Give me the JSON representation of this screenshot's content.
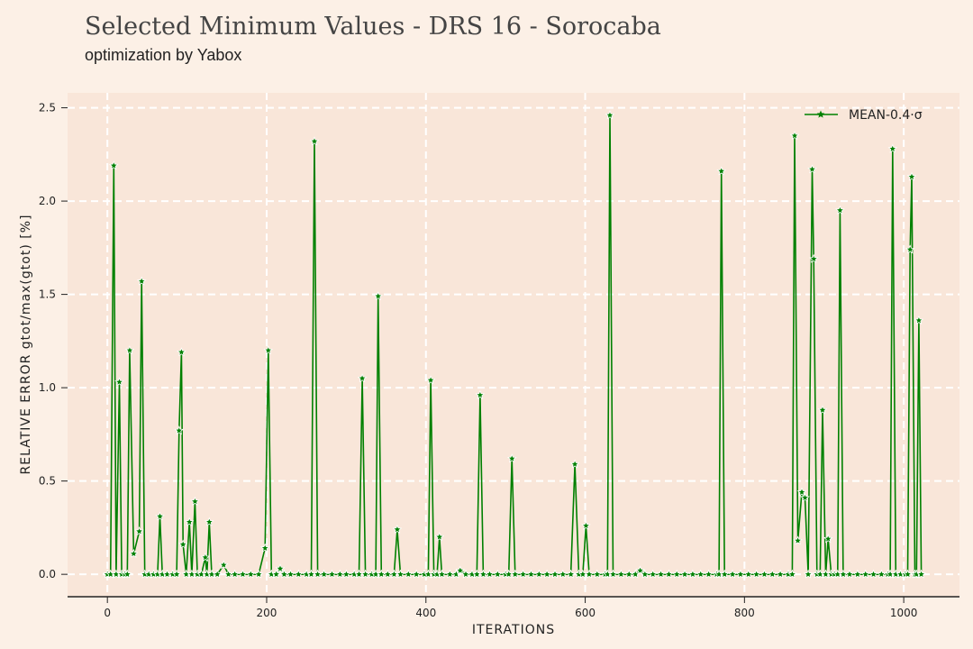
{
  "chart_data": {
    "type": "line",
    "title": "Selected Minimum Values - DRS 16 - Sorocaba",
    "subtitle": "optimization by Yabox",
    "xlabel": "ITERATIONS",
    "ylabel": "RELATIVE ERROR gtot/max(gtot) [%]",
    "x": [
      0,
      4,
      8,
      11,
      15,
      18,
      22,
      25,
      28,
      33,
      40,
      43,
      47,
      52,
      58,
      63,
      66,
      69,
      75,
      82,
      87,
      90,
      93,
      95,
      99,
      103,
      106,
      110,
      113,
      118,
      123,
      125,
      128,
      131,
      138,
      146,
      152,
      160,
      170,
      180,
      190,
      198,
      202,
      206,
      212,
      217,
      222,
      230,
      240,
      250,
      256,
      260,
      264,
      272,
      282,
      292,
      300,
      310,
      316,
      320,
      324,
      332,
      337,
      340,
      344,
      352,
      360,
      364,
      368,
      378,
      388,
      398,
      403,
      406,
      410,
      414,
      417,
      420,
      430,
      438,
      443,
      450,
      458,
      464,
      468,
      472,
      480,
      490,
      500,
      504,
      508,
      512,
      522,
      532,
      542,
      552,
      562,
      572,
      582,
      587,
      592,
      597,
      601,
      605,
      615,
      625,
      628,
      631,
      635,
      645,
      655,
      663,
      669,
      675,
      685,
      695,
      705,
      715,
      725,
      735,
      745,
      755,
      765,
      768,
      771,
      775,
      785,
      795,
      805,
      815,
      825,
      835,
      845,
      855,
      860,
      863,
      867,
      872,
      876,
      880,
      885,
      887,
      891,
      895,
      898,
      902,
      905,
      909,
      913,
      917,
      920,
      924,
      932,
      942,
      952,
      962,
      972,
      980,
      983,
      986,
      990,
      996,
      1002,
      1005,
      1008,
      1010,
      1014,
      1016,
      1019,
      1022
    ],
    "series": [
      {
        "name": "MEAN-0.4·σ",
        "color": "#008000",
        "values": [
          0,
          0,
          2.19,
          0,
          1.03,
          0,
          0,
          0,
          1.2,
          0.11,
          0.23,
          1.57,
          0,
          0,
          0,
          0,
          0.31,
          0,
          0,
          0,
          0,
          0.77,
          1.19,
          0.16,
          0,
          0.28,
          0,
          0.39,
          0,
          0,
          0.09,
          0,
          0.28,
          0,
          0,
          0.05,
          0,
          0,
          0,
          0,
          0,
          0.14,
          1.2,
          0,
          0,
          0.03,
          0,
          0,
          0,
          0,
          0,
          2.32,
          0,
          0,
          0,
          0,
          0,
          0,
          0,
          1.05,
          0,
          0,
          0,
          1.49,
          0,
          0,
          0,
          0.24,
          0,
          0,
          0,
          0,
          0,
          1.04,
          0,
          0,
          0.2,
          0,
          0,
          0,
          0.02,
          0,
          0,
          0,
          0.96,
          0,
          0,
          0,
          0,
          0,
          0.62,
          0,
          0,
          0,
          0,
          0,
          0,
          0,
          0,
          0.59,
          0,
          0,
          0.26,
          0,
          0,
          0,
          0,
          2.46,
          0,
          0,
          0,
          0,
          0.02,
          0,
          0,
          0,
          0,
          0,
          0,
          0,
          0,
          0,
          0,
          0,
          2.16,
          0,
          0,
          0,
          0,
          0,
          0,
          0,
          0,
          0,
          0,
          2.35,
          0.18,
          0.44,
          0.41,
          0,
          2.17,
          1.69,
          0,
          0,
          0.88,
          0,
          0.19,
          0,
          0,
          0,
          1.95,
          0,
          0,
          0,
          0,
          0,
          0,
          0,
          0,
          2.28,
          0,
          0,
          0,
          0,
          1.74,
          2.13,
          0,
          0,
          1.36,
          0
        ]
      }
    ],
    "xlim": [
      -50,
      1070
    ],
    "ylim": [
      -0.12,
      2.58
    ],
    "xticks": [
      0,
      200,
      400,
      600,
      800,
      1000
    ],
    "yticks": [
      {
        "value": 0,
        "label": "0.0"
      },
      0.5,
      {
        "value": 1,
        "label": "1.0"
      },
      1.5,
      {
        "value": 2,
        "label": "2.0"
      },
      2.5
    ],
    "grid": true,
    "legend": "upper right"
  }
}
